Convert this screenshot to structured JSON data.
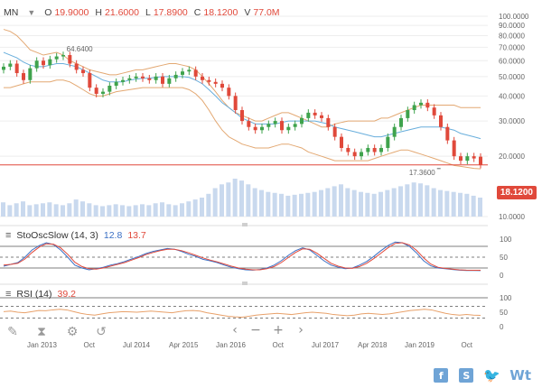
{
  "header": {
    "symbol": "MN",
    "open_label": "O",
    "open": "19.9000",
    "high_label": "H",
    "high": "21.6000",
    "low_label": "L",
    "low": "17.8900",
    "close_label": "C",
    "close": "18.1200",
    "volume_label": "V",
    "volume": "77.0M"
  },
  "toolbar": {
    "icons": [
      "pencil-icon",
      "hourglass-icon",
      "settings-icon",
      "undo-icon"
    ],
    "nav": [
      "‹",
      "−",
      "+",
      "›"
    ]
  },
  "socials": {
    "facebook": "f",
    "share": "S",
    "twitter": "🐦",
    "brand": "Wt"
  },
  "colors": {
    "up": "#3fa34d",
    "down": "#e0493b",
    "bb": "#e3a872",
    "ma": "#68aedc",
    "sto_k": "#3a6fc4",
    "sto_d": "#e0493b",
    "rsi": "#e8a16a",
    "volume": "#c9d9ee",
    "price_line": "#e0493b",
    "ma_line": "#68aedc"
  },
  "chart_data": [
    {
      "type": "candlestick",
      "name": "price",
      "log_scale": true,
      "ylim": [
        10,
        100
      ],
      "ytick_labels": [
        "100.0000",
        "90.0000",
        "80.0000",
        "70.0000",
        "60.0000",
        "50.0000",
        "40.0000",
        "30.0000",
        "20.0000",
        "10.0000"
      ],
      "ytick_values": [
        100,
        90,
        80,
        70,
        60,
        50,
        40,
        30,
        20,
        10
      ],
      "xtick_labels": [
        "Jan 2013",
        "Oct",
        "Jul 2014",
        "Apr 2015",
        "Jan 2016",
        "Oct",
        "Jul 2017",
        "Apr 2018",
        "Jan 2019",
        "Oct"
      ],
      "xtick_dates": [
        "2013-01",
        "2013-10",
        "2014-07",
        "2015-04",
        "2016-01",
        "2016-10",
        "2017-07",
        "2018-04",
        "2019-01",
        "2019-10"
      ],
      "x_start": "2012-05",
      "x_end": "2020-02",
      "annotations": [
        {
          "text": "64.6400",
          "date": "2013-05",
          "value": 64.64
        },
        {
          "text": "17.3600",
          "date": "2019-05",
          "value": 17.36
        }
      ],
      "current_price": 18.12,
      "current_price_label": "18.1200",
      "closes": [
        56,
        58,
        52,
        48,
        55,
        60,
        57,
        61,
        63,
        64,
        58,
        54,
        52,
        44,
        41,
        42,
        45,
        47,
        48,
        49,
        50,
        49,
        48,
        50,
        46,
        49,
        51,
        53,
        54,
        50,
        48,
        47,
        46,
        44,
        40,
        34,
        30,
        28,
        27,
        28,
        29,
        30,
        27,
        28,
        29,
        31,
        33,
        32,
        31,
        28,
        25,
        22,
        21,
        20,
        21,
        22,
        21,
        22,
        25,
        28,
        31,
        34,
        36,
        37,
        35,
        32,
        28,
        24,
        20,
        19,
        20,
        19.5,
        18.12
      ],
      "opens": [
        54,
        56,
        58,
        52,
        48,
        55,
        60,
        57,
        61,
        63,
        64,
        58,
        54,
        52,
        44,
        41,
        42,
        45,
        47,
        48,
        49,
        50,
        49,
        48,
        50,
        46,
        49,
        51,
        53,
        54,
        50,
        48,
        47,
        46,
        44,
        40,
        34,
        30,
        28,
        27,
        28,
        29,
        30,
        27,
        28,
        29,
        31,
        33,
        32,
        31,
        28,
        25,
        22,
        21,
        20,
        21,
        22,
        21,
        22,
        25,
        28,
        31,
        34,
        36,
        37,
        35,
        32,
        28,
        24,
        20,
        19,
        20,
        19.9
      ],
      "bollinger_upper": [
        86,
        84,
        80,
        74,
        68,
        66,
        64,
        65,
        66,
        64,
        60,
        58,
        56,
        54,
        53,
        52,
        51,
        51,
        52,
        53,
        54,
        54,
        55,
        56,
        57,
        58,
        58,
        57,
        56,
        54,
        50,
        46,
        42,
        38,
        35,
        33,
        32,
        31,
        30,
        30,
        31,
        32,
        33,
        33,
        32,
        31,
        30,
        29,
        28,
        28,
        29,
        29.5,
        30,
        30,
        30,
        30,
        30,
        31,
        31,
        32,
        33,
        34,
        35,
        36,
        36,
        36,
        36,
        36,
        36,
        35,
        35,
        35,
        35
      ],
      "bollinger_lower": [
        44,
        44,
        45,
        46,
        47,
        47,
        47,
        47,
        48,
        48,
        47,
        45,
        43,
        41,
        40,
        40,
        41,
        42,
        42.5,
        43,
        43.5,
        44,
        44,
        44,
        44,
        44,
        44,
        44,
        43,
        41,
        38,
        34,
        30,
        27,
        25,
        24,
        23,
        22.5,
        22,
        22,
        22,
        22.5,
        23,
        23,
        22.5,
        22,
        21,
        20.5,
        20,
        19.5,
        19,
        19,
        19,
        19,
        19,
        19,
        19.5,
        20,
        20.5,
        21,
        21.5,
        21.5,
        21,
        20.5,
        20,
        19.5,
        19,
        18.5,
        18,
        17.8,
        17.6,
        17.4,
        17.3
      ],
      "moving_average": [
        66,
        64,
        62,
        59,
        57,
        56,
        56,
        57,
        58,
        58,
        57,
        56,
        54,
        52,
        50,
        48,
        47,
        47,
        47,
        48,
        48.5,
        49,
        49,
        49.5,
        50,
        50,
        50,
        50,
        49.5,
        48,
        46,
        43,
        40,
        37,
        35,
        33,
        31,
        30,
        29,
        29,
        29,
        29,
        29.5,
        30,
        30,
        30,
        30,
        30,
        29.5,
        29,
        28,
        27.5,
        27,
        26.5,
        26,
        25.5,
        25,
        25,
        25.5,
        26,
        26.5,
        27,
        27.5,
        28,
        28,
        28,
        28,
        27.5,
        27,
        26,
        25.5,
        25,
        24.5
      ],
      "volume": [
        15,
        12,
        14,
        16,
        12,
        13,
        14,
        15,
        13,
        12,
        14,
        18,
        16,
        14,
        12,
        11,
        12,
        13,
        12,
        11,
        12,
        13,
        12,
        14,
        15,
        13,
        12,
        14,
        16,
        18,
        20,
        24,
        30,
        34,
        36,
        40,
        38,
        34,
        30,
        28,
        26,
        25,
        24,
        22,
        23,
        24,
        25,
        26,
        28,
        30,
        32,
        34,
        30,
        28,
        26,
        25,
        24,
        26,
        28,
        30,
        32,
        34,
        36,
        35,
        33,
        30,
        28,
        27,
        26,
        25,
        24,
        22,
        20
      ]
    },
    {
      "type": "line",
      "name": "StoOscSlow (14, 3)",
      "ylim": [
        0,
        100
      ],
      "ytick_labels": [
        "100",
        "50",
        "0"
      ],
      "levels": [
        80,
        50,
        20
      ],
      "k_value": "12.8",
      "d_value": "13.7",
      "k_series": [
        25,
        30,
        35,
        50,
        70,
        82,
        90,
        85,
        70,
        50,
        28,
        20,
        15,
        18,
        22,
        28,
        32,
        38,
        45,
        52,
        60,
        66,
        70,
        74,
        72,
        66,
        58,
        52,
        44,
        40,
        35,
        28,
        22,
        18,
        15,
        14,
        16,
        20,
        28,
        40,
        55,
        68,
        76,
        70,
        55,
        40,
        28,
        22,
        18,
        20,
        28,
        38,
        52,
        68,
        82,
        92,
        90,
        80,
        62,
        40,
        26,
        20,
        18,
        16,
        14,
        13,
        13,
        12.8
      ],
      "d_series": [
        28,
        30,
        33,
        45,
        63,
        78,
        87,
        86,
        76,
        58,
        36,
        24,
        18,
        17,
        20,
        25,
        30,
        35,
        42,
        49,
        57,
        63,
        68,
        72,
        72,
        68,
        62,
        55,
        48,
        42,
        37,
        31,
        25,
        20,
        17,
        15,
        15,
        18,
        24,
        35,
        49,
        63,
        73,
        72,
        61,
        47,
        33,
        25,
        20,
        19,
        24,
        33,
        46,
        61,
        76,
        88,
        90,
        84,
        69,
        48,
        31,
        22,
        19,
        17,
        15,
        14,
        13.8,
        13.7
      ]
    },
    {
      "type": "line",
      "name": "RSI (14)",
      "ylim": [
        0,
        100
      ],
      "ytick_labels": [
        "100",
        "50",
        "0"
      ],
      "levels": [
        70,
        30
      ],
      "value": "39.2",
      "series": [
        52,
        54,
        50,
        48,
        52,
        56,
        55,
        58,
        60,
        58,
        52,
        46,
        42,
        40,
        44,
        48,
        50,
        52,
        51,
        50,
        52,
        54,
        52,
        50,
        48,
        52,
        55,
        56,
        54,
        48,
        44,
        40,
        36,
        34,
        33,
        36,
        40,
        42,
        44,
        46,
        44,
        42,
        45,
        48,
        50,
        48,
        46,
        42,
        40,
        38,
        40,
        44,
        46,
        44,
        42,
        44,
        48,
        52,
        56,
        58,
        60,
        58,
        52,
        46,
        42,
        40,
        42,
        40,
        39.2
      ]
    }
  ]
}
